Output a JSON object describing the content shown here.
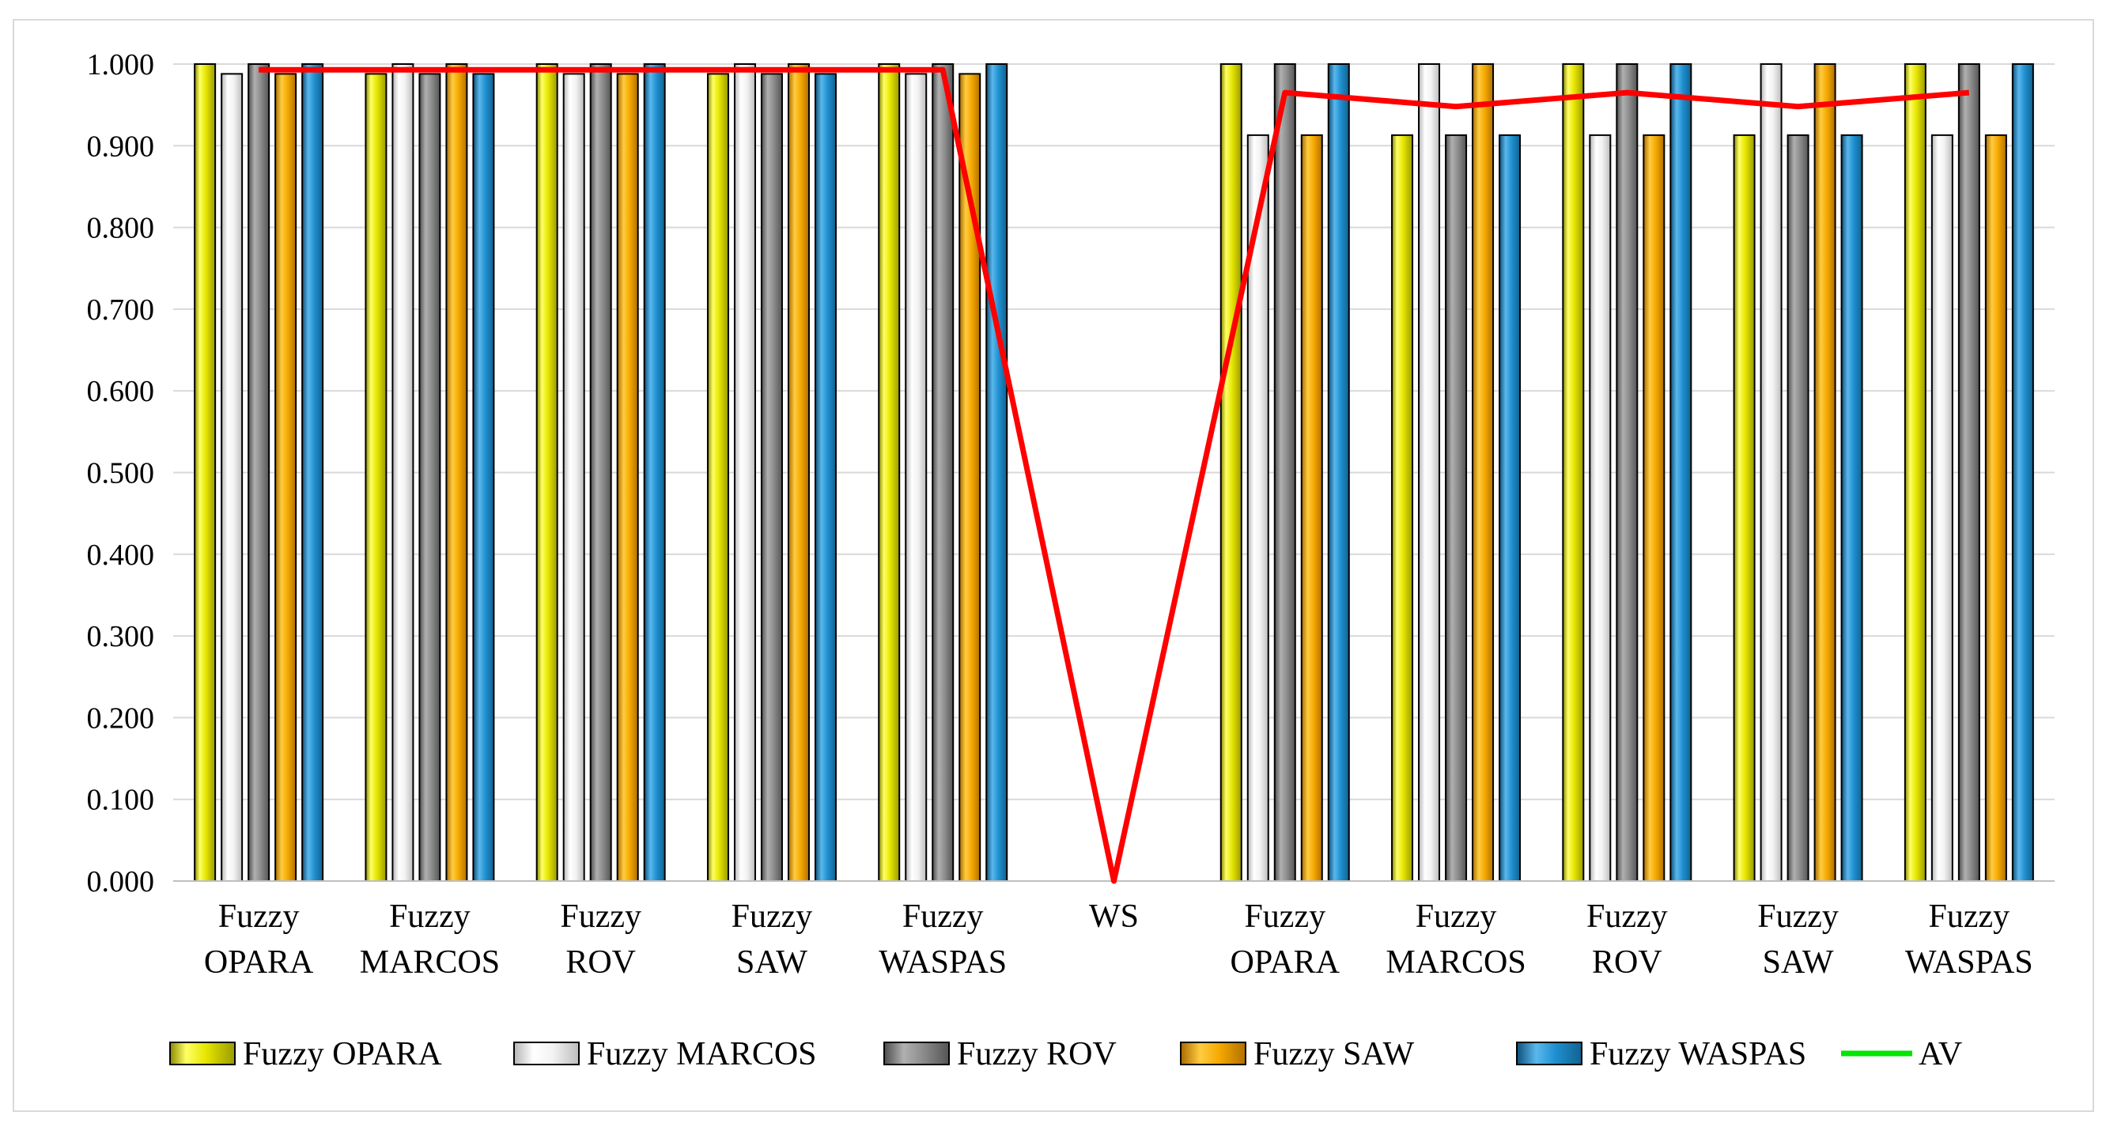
{
  "chart_data": {
    "type": "bar",
    "title": "",
    "xlabel": "",
    "ylabel": "",
    "ylim": [
      0,
      1
    ],
    "y_ticks": [
      "0.000",
      "0.100",
      "0.200",
      "0.300",
      "0.400",
      "0.500",
      "0.600",
      "0.700",
      "0.800",
      "0.900",
      "1.000"
    ],
    "grid": true,
    "legend_position": "bottom",
    "categories": [
      [
        "Fuzzy",
        "OPARA"
      ],
      [
        "Fuzzy",
        "MARCOS"
      ],
      [
        "Fuzzy",
        "ROV"
      ],
      [
        "Fuzzy",
        "SAW"
      ],
      [
        "Fuzzy",
        "WASPAS"
      ],
      [
        "WS"
      ],
      [
        "Fuzzy",
        "OPARA"
      ],
      [
        "Fuzzy",
        "MARCOS"
      ],
      [
        "Fuzzy",
        "ROV"
      ],
      [
        "Fuzzy",
        "SAW"
      ],
      [
        "Fuzzy",
        "WASPAS"
      ]
    ],
    "series": [
      {
        "name": "Fuzzy OPARA",
        "color": "#e6e600",
        "values": [
          1.0,
          0.988,
          1.0,
          0.988,
          1.0,
          null,
          1.0,
          0.913,
          1.0,
          0.913,
          1.0
        ]
      },
      {
        "name": "Fuzzy MARCOS",
        "color": "#f2f2f2",
        "values": [
          0.988,
          1.0,
          0.988,
          1.0,
          0.988,
          null,
          0.913,
          1.0,
          0.913,
          1.0,
          0.913
        ]
      },
      {
        "name": "Fuzzy ROV",
        "color": "#8c8c8c",
        "values": [
          1.0,
          0.988,
          1.0,
          0.988,
          1.0,
          null,
          1.0,
          0.913,
          1.0,
          0.913,
          1.0
        ]
      },
      {
        "name": "Fuzzy SAW",
        "color": "#f5a800",
        "values": [
          0.988,
          1.0,
          0.988,
          1.0,
          0.988,
          null,
          0.913,
          1.0,
          0.913,
          1.0,
          0.913
        ]
      },
      {
        "name": "Fuzzy WASPAS",
        "color": "#1e8fd0",
        "values": [
          1.0,
          0.988,
          1.0,
          0.988,
          1.0,
          null,
          1.0,
          0.913,
          1.0,
          0.913,
          1.0
        ]
      }
    ],
    "line_series": {
      "name": "AV",
      "legend_color": "#00e600",
      "color": "#ff0000",
      "values": [
        0.993,
        0.993,
        0.993,
        0.993,
        0.993,
        0.0,
        0.965,
        0.948,
        0.965,
        0.948,
        0.965
      ]
    }
  }
}
